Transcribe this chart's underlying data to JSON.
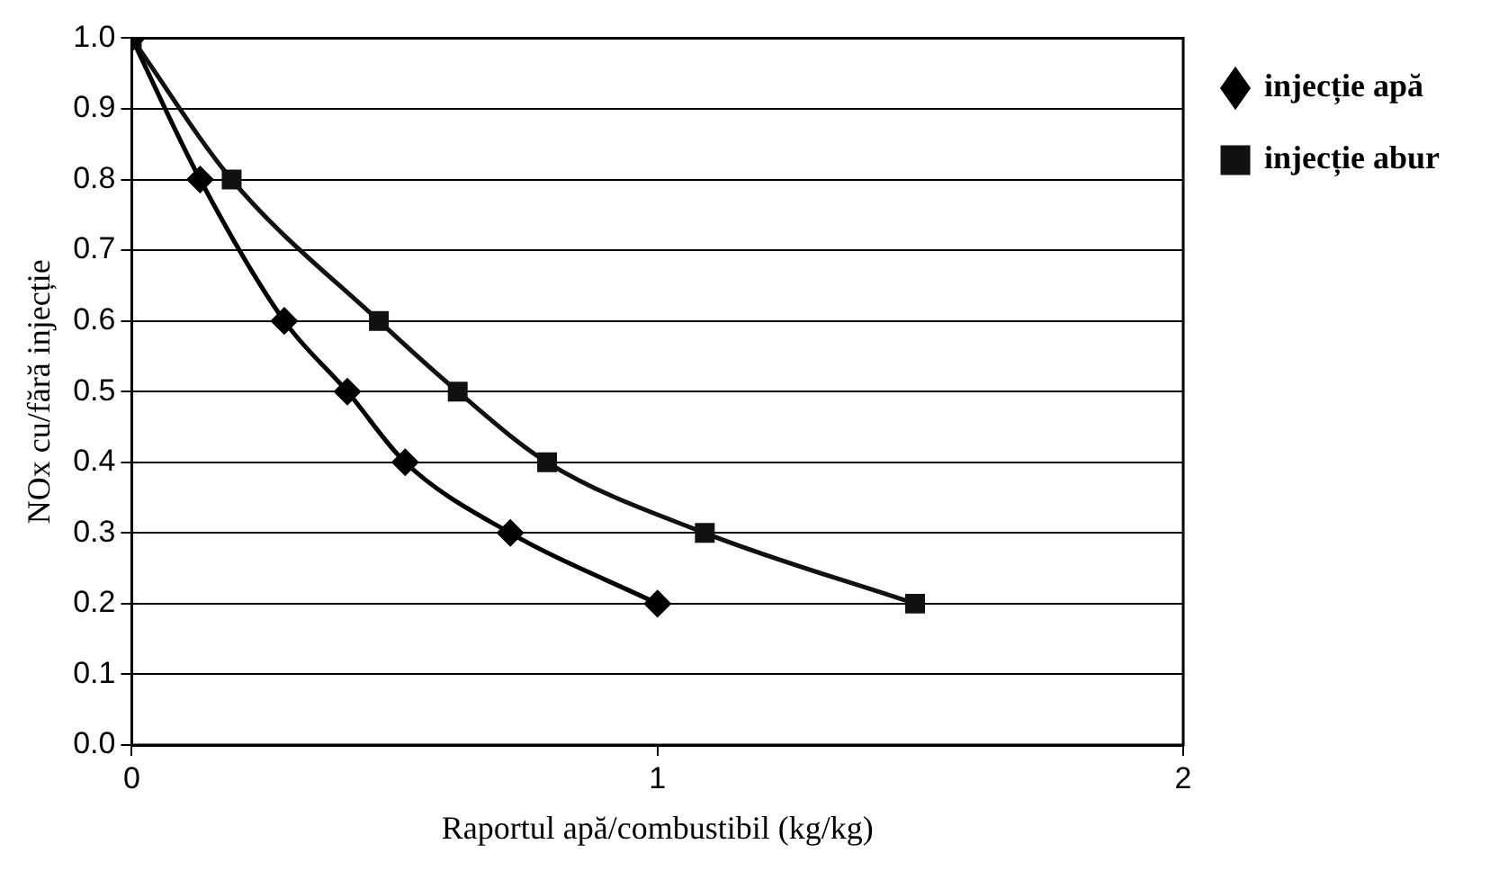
{
  "chart_data": {
    "type": "line",
    "xlabel": "Raportul apă/combustibil (kg/kg)",
    "ylabel": "NOx cu/fără injecție",
    "xlim": [
      0,
      2
    ],
    "xticks": [
      0,
      1,
      2
    ],
    "ylim": [
      0,
      1
    ],
    "yticks": [
      {
        "value": 0,
        "label": "0.0"
      },
      {
        "value": 0.1,
        "label": "0.1"
      },
      {
        "value": 0.2,
        "label": "0.2"
      },
      {
        "value": 0.3,
        "label": "0.3"
      },
      {
        "value": 0.4,
        "label": "0.4"
      },
      {
        "value": 0.5,
        "label": "0.5"
      },
      {
        "value": 0.6,
        "label": "0.6"
      },
      {
        "value": 0.7,
        "label": "0.7"
      },
      {
        "value": 0.8,
        "label": "0.8"
      },
      {
        "value": 0.9,
        "label": "0.9"
      },
      {
        "value": 1,
        "label": "1.0"
      }
    ],
    "grid": "y",
    "legend": "right",
    "series": [
      {
        "name": "injecție apă",
        "color": "#000000",
        "marker": "diamond",
        "x": [
          0,
          0.13,
          0.29,
          0.41,
          0.52,
          0.72,
          1.0
        ],
        "values": [
          1,
          0.8,
          0.6,
          0.5,
          0.4,
          0.3,
          0.2
        ]
      },
      {
        "name": "injecție abur",
        "color": "#111111",
        "marker": "square",
        "x": [
          0,
          0.19,
          0.47,
          0.62,
          0.79,
          1.09,
          1.49
        ],
        "values": [
          1,
          0.8,
          0.6,
          0.5,
          0.4,
          0.3,
          0.2
        ]
      }
    ]
  }
}
